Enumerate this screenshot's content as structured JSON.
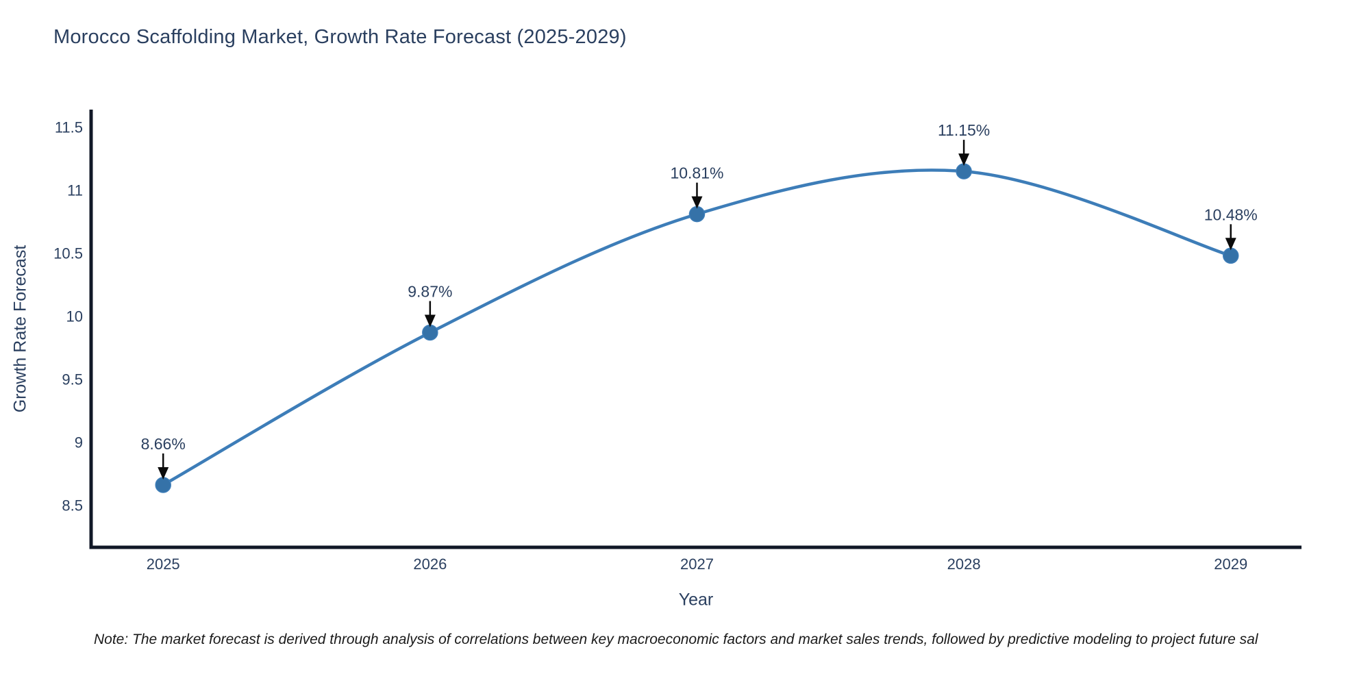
{
  "title": "Morocco Scaffolding Market, Growth Rate Forecast (2025-2029)",
  "note": "Note: The market forecast is derived through analysis of correlations between key macroeconomic factors and market sales trends, followed by predictive modeling to project future sal",
  "chart_data": {
    "type": "line",
    "title": "Morocco Scaffolding Market, Growth Rate Forecast (2025-2029)",
    "xlabel": "Year",
    "ylabel": "Growth Rate Forecast",
    "x": [
      2025,
      2026,
      2027,
      2028,
      2029
    ],
    "values": [
      8.66,
      9.87,
      10.81,
      11.15,
      10.48
    ],
    "point_labels": [
      "8.66%",
      "9.87%",
      "10.81%",
      "11.15%",
      "10.48%"
    ],
    "xtick_labels": [
      "2025",
      "2026",
      "2027",
      "2028",
      "2029"
    ],
    "yticks": [
      8.5,
      9,
      9.5,
      10,
      10.5,
      11,
      11.5
    ],
    "ytick_labels": [
      "8.5",
      "9",
      "9.5",
      "10",
      "10.5",
      "11",
      "11.5"
    ],
    "xlim": [
      2024.73,
      2029.265
    ],
    "ylim": [
      8.165,
      11.64
    ],
    "grid": false,
    "legend": "none",
    "line_shape": "spline",
    "colors": {
      "line": "#3d7db8",
      "marker": "#3572a8",
      "axis": "#111827",
      "tick_text": "#2a3f5f",
      "annotation_text": "#2a3f5f",
      "arrow": "#0b0b0b"
    }
  }
}
